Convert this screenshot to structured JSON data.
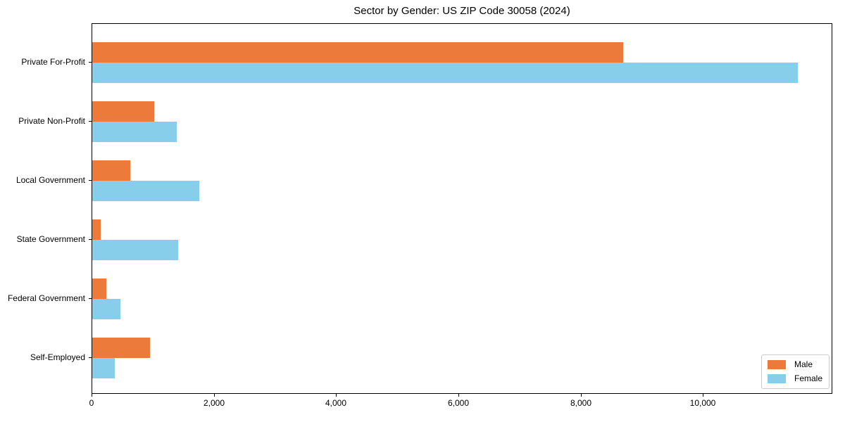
{
  "chart_data": {
    "type": "bar",
    "orientation": "horizontal",
    "title": "Sector by Gender: US ZIP Code 30058 (2024)",
    "categories": [
      "Private For-Profit",
      "Private Non-Profit",
      "Local Government",
      "State Government",
      "Federal Government",
      "Self-Employed"
    ],
    "series": [
      {
        "name": "Male",
        "color": "#EB7A3B",
        "values": [
          8690,
          1010,
          620,
          140,
          230,
          950
        ]
      },
      {
        "name": "Female",
        "color": "#87CEEB",
        "values": [
          11540,
          1380,
          1750,
          1410,
          460,
          370
        ]
      }
    ],
    "xlabel": "",
    "ylabel": "",
    "xlim": [
      0,
      12117
    ],
    "x_ticks": [
      0,
      2000,
      4000,
      6000,
      8000,
      10000
    ],
    "x_tick_labels": [
      "0",
      "2,000",
      "4,000",
      "6,000",
      "8,000",
      "10,000"
    ],
    "grid": false,
    "legend": {
      "position": "lower right",
      "entries": [
        "Male",
        "Female"
      ]
    },
    "colors": {
      "plot_border": "#000000",
      "background": "#ffffff",
      "legend_border": "#cccccc",
      "text": "#000000"
    }
  }
}
